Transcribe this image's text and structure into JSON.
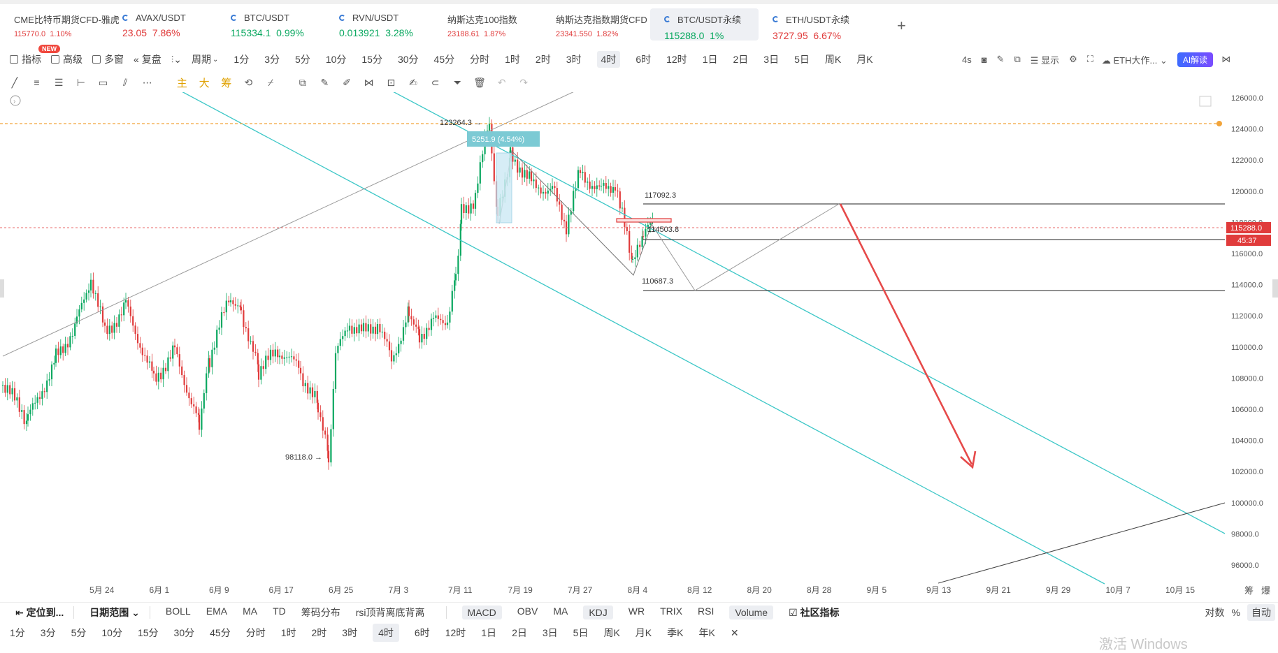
{
  "tickers": [
    {
      "name": "CME比特币期货CFD-雅虎",
      "price": "115770.0",
      "change": "1.10%",
      "dir": "dn",
      "icon": false,
      "small": true
    },
    {
      "name": "AVAX/USDT",
      "price": "23.05",
      "change": "7.86%",
      "dir": "dn",
      "icon": true,
      "small": false
    },
    {
      "name": "BTC/USDT",
      "price": "115334.1",
      "change": "0.99%",
      "dir": "up",
      "icon": true,
      "small": false
    },
    {
      "name": "RVN/USDT",
      "price": "0.013921",
      "change": "3.28%",
      "dir": "up",
      "icon": true,
      "small": false
    },
    {
      "name": "纳斯达克100指数",
      "price": "23188.61",
      "change": "1.87%",
      "dir": "dn",
      "icon": false,
      "small": true
    },
    {
      "name": "纳斯达克指数期货CFD",
      "price": "23341.550",
      "change": "1.82%",
      "dir": "dn",
      "icon": false,
      "small": true
    },
    {
      "name": "BTC/USDT永续",
      "price": "115288.0",
      "change": "1%",
      "dir": "up",
      "icon": true,
      "small": false,
      "active": true
    },
    {
      "name": "ETH/USDT永续",
      "price": "3727.95",
      "change": "6.67%",
      "dir": "dn",
      "icon": true,
      "small": false
    }
  ],
  "new_badge": "NEW",
  "add_tab": "+",
  "toolbar": {
    "items": [
      "指标",
      "高级",
      "多窗",
      "复盘"
    ],
    "period_label": "周期",
    "periods": [
      "1分",
      "3分",
      "5分",
      "10分",
      "15分",
      "30分",
      "45分",
      "分时",
      "1时",
      "2时",
      "3时",
      "4时",
      "6时",
      "12时",
      "1日",
      "2日",
      "3日",
      "5日",
      "周K",
      "月K"
    ],
    "selected_period": "4时",
    "right_interval": "4s",
    "display_label": "显示",
    "eth_label": "ETH大作...",
    "ai_label": "AI解读"
  },
  "drawing_tools": {
    "gold": [
      "主",
      "大",
      "筹"
    ]
  },
  "chart": {
    "price_axis": [
      "126000.0",
      "124000.0",
      "122000.0",
      "120000.0",
      "118000.0",
      "116000.0",
      "114000.0",
      "112000.0",
      "110000.0",
      "108000.0",
      "106000.0",
      "104000.0",
      "102000.0",
      "100000.0",
      "98000.0",
      "96000.0"
    ],
    "date_axis": [
      "5月 24",
      "6月 1",
      "6月 9",
      "6月 17",
      "6月 25",
      "7月 3",
      "7月 11",
      "7月 19",
      "7月 27",
      "8月 4",
      "8月 12",
      "8月 20",
      "8月 28",
      "9月 5",
      "9月 13",
      "9月 21",
      "9月 29",
      "10月 7",
      "10月 15"
    ],
    "current_price": "115288.0",
    "countdown": "45:37",
    "high_label": "123264.3 →",
    "low_label": "98118.0 →",
    "measure_label": "5251.9 (4.54%)",
    "level_1": "117092.3",
    "level_2": "114503.8",
    "level_3": "110687.3",
    "corner_labels": [
      "筹",
      "爆"
    ]
  },
  "bottom_bar": {
    "locate": "定位到...",
    "range": "日期范围",
    "indicators": [
      "BOLL",
      "EMA",
      "MA",
      "TD",
      "筹码分布",
      "rsi顶背离底背离"
    ],
    "sub_indicators": [
      "MACD",
      "OBV",
      "MA",
      "KDJ",
      "WR",
      "TRIX",
      "RSI",
      "Volume"
    ],
    "community": "社区指标",
    "right": [
      "对数",
      "%",
      "自动"
    ]
  },
  "bottom_periods": [
    "1分",
    "3分",
    "5分",
    "10分",
    "15分",
    "30分",
    "45分",
    "分时",
    "1时",
    "2时",
    "3时",
    "4时",
    "6时",
    "12时",
    "1日",
    "2日",
    "3日",
    "5日",
    "周K",
    "月K",
    "季K",
    "年K"
  ],
  "close": "✕",
  "watermark": "激活 Windows",
  "colors": {
    "up": "#0aa860",
    "down": "#e03b3b",
    "channel": "#3cc7c7",
    "accent": "#e03b3b"
  }
}
